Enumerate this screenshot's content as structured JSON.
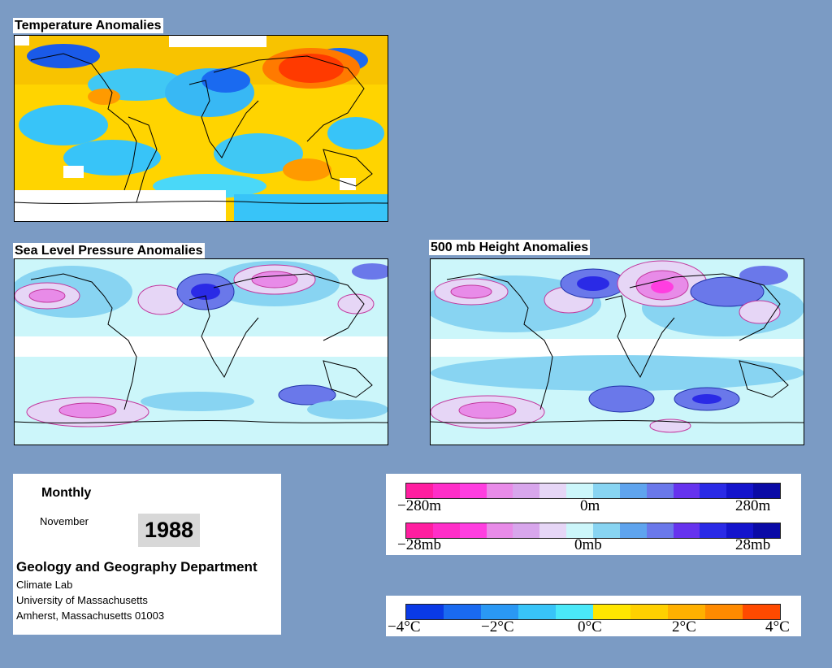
{
  "panels": {
    "temperature": {
      "title": "Temperature Anomalies"
    },
    "slp": {
      "title": "Sea Level Pressure Anomalies"
    },
    "height500": {
      "title": "500 mb Height Anomalies"
    }
  },
  "info": {
    "period": "Monthly",
    "month": "November",
    "year": "1988",
    "department": "Geology and Geography Department",
    "lab": "Climate Lab",
    "university": "University of Massachusetts",
    "address": "Amherst, Massachusetts 01003"
  },
  "legends": {
    "height": {
      "labels": [
        "−280m",
        "0m",
        "280m"
      ]
    },
    "pressure": {
      "labels": [
        "−28mb",
        "0mb",
        "28mb"
      ]
    },
    "temperature": {
      "labels": [
        "−4°C",
        "−2°C",
        "0°C",
        "2°C",
        "4°C"
      ]
    }
  },
  "colors": {
    "background": "#7b9bc4",
    "anomaly_scale": [
      "#ff1ea0",
      "#ff2ec8",
      "#ff3ee0",
      "#e88be8",
      "#d8a6ec",
      "#e6d6f6",
      "#ccf6fa",
      "#88d4f2",
      "#5fa4ee",
      "#6a78ea",
      "#6633ee",
      "#2a2ae6",
      "#1414cc",
      "#0a0aa6"
    ],
    "temperature_scale": [
      "#0a3ae6",
      "#1a6af0",
      "#2a98f4",
      "#38c4f8",
      "#4ae8f8",
      "#ffe600",
      "#ffd000",
      "#ffb000",
      "#ff8a00",
      "#ff4a00"
    ]
  }
}
